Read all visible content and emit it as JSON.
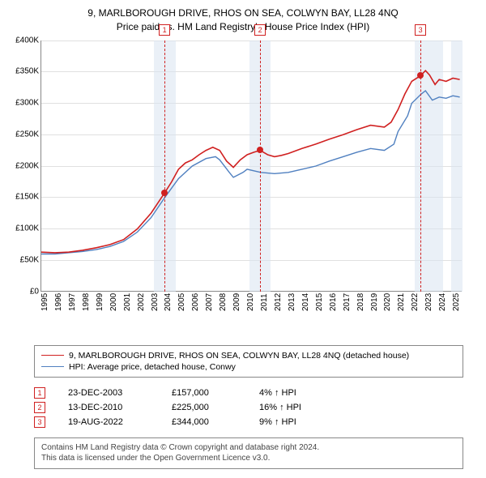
{
  "title_line1": "9, MARLBOROUGH DRIVE, RHOS ON SEA, COLWYN BAY, LL28 4NQ",
  "title_line2": "Price paid vs. HM Land Registry's House Price Index (HPI)",
  "chart": {
    "type": "line",
    "xlim": [
      1995,
      2025.7
    ],
    "ylim": [
      0,
      400000
    ],
    "ytick_step": 50000,
    "yticks": [
      "£0",
      "£50K",
      "£100K",
      "£150K",
      "£200K",
      "£250K",
      "£300K",
      "£350K",
      "£400K"
    ],
    "xticks": [
      1995,
      1996,
      1997,
      1998,
      1999,
      2000,
      2001,
      2002,
      2003,
      2004,
      2005,
      2006,
      2007,
      2008,
      2009,
      2010,
      2011,
      2012,
      2013,
      2014,
      2015,
      2016,
      2017,
      2018,
      2019,
      2020,
      2021,
      2022,
      2023,
      2024,
      2025
    ],
    "background_color": "#ffffff",
    "grid_color": "#e0e0e0",
    "band_color": "#d8e4f0",
    "series": {
      "property": {
        "label": "9, MARLBOROUGH DRIVE, RHOS ON SEA, COLWYN BAY, LL28 4NQ (detached house)",
        "color": "#d02020",
        "line_width": 1.6,
        "data": [
          [
            1995,
            63000
          ],
          [
            1996,
            62000
          ],
          [
            1997,
            63000
          ],
          [
            1998,
            66000
          ],
          [
            1999,
            70000
          ],
          [
            2000,
            75000
          ],
          [
            2001,
            83000
          ],
          [
            2002,
            100000
          ],
          [
            2003,
            125000
          ],
          [
            2003.98,
            157000
          ],
          [
            2004.5,
            175000
          ],
          [
            2005,
            195000
          ],
          [
            2005.5,
            205000
          ],
          [
            2006,
            210000
          ],
          [
            2006.5,
            218000
          ],
          [
            2007,
            225000
          ],
          [
            2007.5,
            230000
          ],
          [
            2008,
            225000
          ],
          [
            2008.5,
            208000
          ],
          [
            2009,
            198000
          ],
          [
            2009.5,
            210000
          ],
          [
            2010,
            218000
          ],
          [
            2010.5,
            222000
          ],
          [
            2010.95,
            225000
          ],
          [
            2011.5,
            218000
          ],
          [
            2012,
            215000
          ],
          [
            2012.5,
            217000
          ],
          [
            2013,
            220000
          ],
          [
            2014,
            228000
          ],
          [
            2015,
            235000
          ],
          [
            2016,
            243000
          ],
          [
            2017,
            250000
          ],
          [
            2018,
            258000
          ],
          [
            2019,
            265000
          ],
          [
            2020,
            262000
          ],
          [
            2020.5,
            270000
          ],
          [
            2021,
            290000
          ],
          [
            2021.5,
            315000
          ],
          [
            2022,
            335000
          ],
          [
            2022.64,
            344000
          ],
          [
            2023,
            352000
          ],
          [
            2023.3,
            345000
          ],
          [
            2023.7,
            330000
          ],
          [
            2024,
            338000
          ],
          [
            2024.5,
            335000
          ],
          [
            2025,
            340000
          ],
          [
            2025.5,
            338000
          ]
        ]
      },
      "hpi": {
        "label": "HPI: Average price, detached house, Conwy",
        "color": "#5080c0",
        "line_width": 1.4,
        "data": [
          [
            1995,
            60000
          ],
          [
            1996,
            60000
          ],
          [
            1997,
            62000
          ],
          [
            1998,
            64000
          ],
          [
            1999,
            67000
          ],
          [
            2000,
            72000
          ],
          [
            2001,
            80000
          ],
          [
            2002,
            95000
          ],
          [
            2003,
            118000
          ],
          [
            2004,
            150000
          ],
          [
            2005,
            180000
          ],
          [
            2006,
            200000
          ],
          [
            2007,
            212000
          ],
          [
            2007.7,
            215000
          ],
          [
            2008,
            210000
          ],
          [
            2008.7,
            190000
          ],
          [
            2009,
            182000
          ],
          [
            2009.7,
            190000
          ],
          [
            2010,
            195000
          ],
          [
            2011,
            190000
          ],
          [
            2012,
            188000
          ],
          [
            2013,
            190000
          ],
          [
            2014,
            195000
          ],
          [
            2015,
            200000
          ],
          [
            2016,
            208000
          ],
          [
            2017,
            215000
          ],
          [
            2018,
            222000
          ],
          [
            2019,
            228000
          ],
          [
            2020,
            225000
          ],
          [
            2020.7,
            235000
          ],
          [
            2021,
            255000
          ],
          [
            2021.7,
            280000
          ],
          [
            2022,
            300000
          ],
          [
            2022.7,
            315000
          ],
          [
            2023,
            320000
          ],
          [
            2023.5,
            305000
          ],
          [
            2024,
            310000
          ],
          [
            2024.5,
            308000
          ],
          [
            2025,
            312000
          ],
          [
            2025.5,
            310000
          ]
        ]
      }
    },
    "shaded_bands": [
      {
        "from": 2003.2,
        "to": 2004.8
      },
      {
        "from": 2010.2,
        "to": 2011.7
      },
      {
        "from": 2022.2,
        "to": 2024.3
      },
      {
        "from": 2024.9,
        "to": 2025.7
      }
    ],
    "sale_markers": [
      {
        "n": "1",
        "year": 2003.98,
        "price": 157000
      },
      {
        "n": "2",
        "year": 2010.95,
        "price": 225000
      },
      {
        "n": "3",
        "year": 2022.64,
        "price": 344000
      }
    ]
  },
  "legend": {
    "items": [
      {
        "color": "#d02020",
        "label_path": "chart.series.property.label"
      },
      {
        "color": "#5080c0",
        "label_path": "chart.series.hpi.label"
      }
    ]
  },
  "sales": [
    {
      "n": "1",
      "date": "23-DEC-2003",
      "price": "£157,000",
      "hpi": "4% ↑ HPI"
    },
    {
      "n": "2",
      "date": "13-DEC-2010",
      "price": "£225,000",
      "hpi": "16% ↑ HPI"
    },
    {
      "n": "3",
      "date": "19-AUG-2022",
      "price": "£344,000",
      "hpi": "9% ↑ HPI"
    }
  ],
  "footer_line1": "Contains HM Land Registry data © Crown copyright and database right 2024.",
  "footer_line2": "This data is licensed under the Open Government Licence v3.0."
}
